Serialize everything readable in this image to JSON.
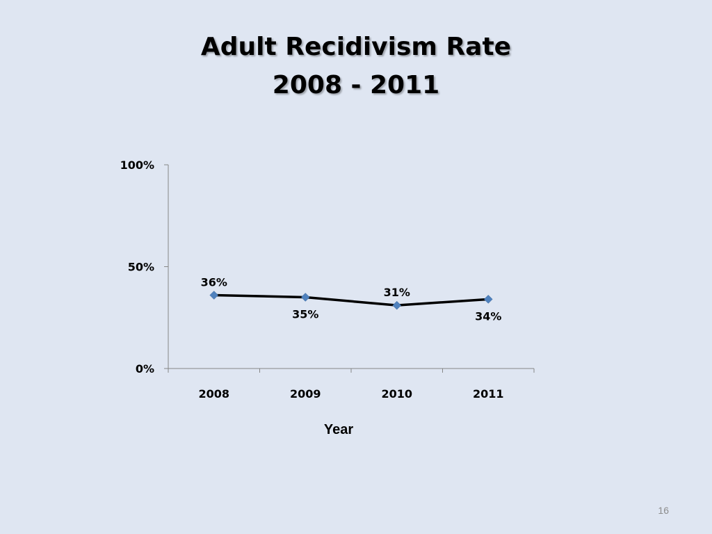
{
  "slide": {
    "title_line1": "Adult Recidivism Rate",
    "title_line2": "2008 - 2011",
    "page_number": "16"
  },
  "colors": {
    "background": "#dfe6f2",
    "line": "#000000",
    "marker": "#4f81bd",
    "axis": "#868686"
  },
  "chart_data": {
    "type": "line",
    "title": "",
    "xlabel": "Year",
    "ylabel": "",
    "categories": [
      "2008",
      "2009",
      "2010",
      "2011"
    ],
    "series": [
      {
        "values": [
          36,
          35,
          31,
          34
        ],
        "labels": [
          "36%",
          "35%",
          "31%",
          "34%"
        ],
        "label_positions": [
          "above",
          "below",
          "above",
          "below"
        ],
        "marker": "diamond"
      }
    ],
    "ylim": [
      0,
      100
    ],
    "y_ticks": [
      0,
      50,
      100
    ],
    "y_tick_labels": [
      "0%",
      "50%",
      "100%"
    ],
    "grid": false,
    "legend": "none"
  }
}
